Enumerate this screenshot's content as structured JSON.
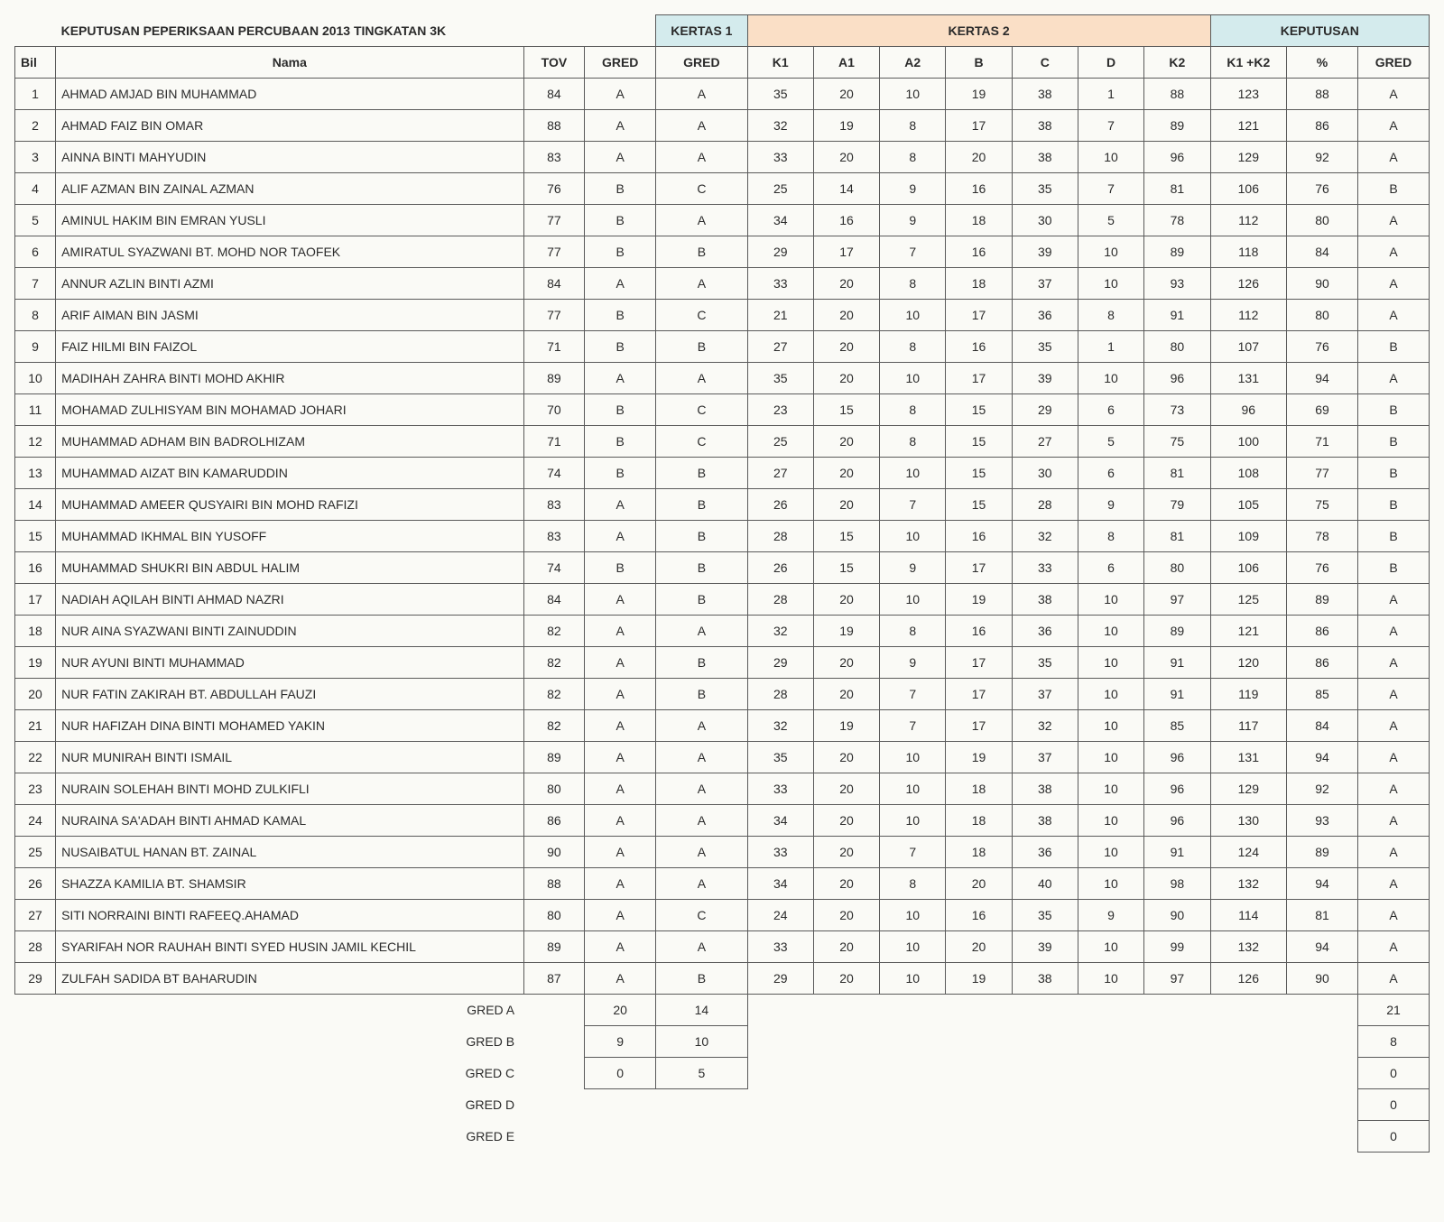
{
  "title": "KEPUTUSAN PEPERIKSAAN PERCUBAAN  2013 TINGKATAN 3K",
  "colors": {
    "header_blue": "#d4ebed",
    "header_peach": "#fadfc6",
    "border": "#5a5a5a",
    "background": "#fafaf6",
    "text": "#2b2b2b"
  },
  "fontsize": 14,
  "headers": {
    "kertas1": "KERTAS 1",
    "kertas2": "KERTAS 2",
    "keputusan": "KEPUTUSAN",
    "bil": "Bil",
    "nama": "Nama",
    "tov": "TOV",
    "gred": "GRED",
    "k1": "K1",
    "a1": "A1",
    "a2": "A2",
    "b": "B",
    "c": "C",
    "d": "D",
    "k2": "K2",
    "k1k2": "K1 +K2",
    "pct": "%"
  },
  "rows": [
    {
      "bil": 1,
      "name": "AHMAD AMJAD BIN MUHAMMAD",
      "tov": 84,
      "tg": "A",
      "k1g": "A",
      "k1": 35,
      "a1": 20,
      "a2": 10,
      "b": 19,
      "c": 38,
      "d": 1,
      "k2": 88,
      "sum": 123,
      "pct": 88,
      "fg": "A"
    },
    {
      "bil": 2,
      "name": "AHMAD FAIZ BIN OMAR",
      "tov": 88,
      "tg": "A",
      "k1g": "A",
      "k1": 32,
      "a1": 19,
      "a2": 8,
      "b": 17,
      "c": 38,
      "d": 7,
      "k2": 89,
      "sum": 121,
      "pct": 86,
      "fg": "A"
    },
    {
      "bil": 3,
      "name": "AINNA BINTI MAHYUDIN",
      "tov": 83,
      "tg": "A",
      "k1g": "A",
      "k1": 33,
      "a1": 20,
      "a2": 8,
      "b": 20,
      "c": 38,
      "d": 10,
      "k2": 96,
      "sum": 129,
      "pct": 92,
      "fg": "A"
    },
    {
      "bil": 4,
      "name": "ALIF AZMAN BIN ZAINAL AZMAN",
      "tov": 76,
      "tg": "B",
      "k1g": "C",
      "k1": 25,
      "a1": 14,
      "a2": 9,
      "b": 16,
      "c": 35,
      "d": 7,
      "k2": 81,
      "sum": 106,
      "pct": 76,
      "fg": "B"
    },
    {
      "bil": 5,
      "name": "AMINUL HAKIM BIN EMRAN YUSLI",
      "tov": 77,
      "tg": "B",
      "k1g": "A",
      "k1": 34,
      "a1": 16,
      "a2": 9,
      "b": 18,
      "c": 30,
      "d": 5,
      "k2": 78,
      "sum": 112,
      "pct": 80,
      "fg": "A"
    },
    {
      "bil": 6,
      "name": "AMIRATUL SYAZWANI BT. MOHD NOR TAOFEK",
      "tov": 77,
      "tg": "B",
      "k1g": "B",
      "k1": 29,
      "a1": 17,
      "a2": 7,
      "b": 16,
      "c": 39,
      "d": 10,
      "k2": 89,
      "sum": 118,
      "pct": 84,
      "fg": "A"
    },
    {
      "bil": 7,
      "name": "ANNUR AZLIN BINTI AZMI",
      "tov": 84,
      "tg": "A",
      "k1g": "A",
      "k1": 33,
      "a1": 20,
      "a2": 8,
      "b": 18,
      "c": 37,
      "d": 10,
      "k2": 93,
      "sum": 126,
      "pct": 90,
      "fg": "A"
    },
    {
      "bil": 8,
      "name": "ARIF AIMAN BIN JASMI",
      "tov": 77,
      "tg": "B",
      "k1g": "C",
      "k1": 21,
      "a1": 20,
      "a2": 10,
      "b": 17,
      "c": 36,
      "d": 8,
      "k2": 91,
      "sum": 112,
      "pct": 80,
      "fg": "A"
    },
    {
      "bil": 9,
      "name": "FAIZ HILMI BIN FAIZOL",
      "tov": 71,
      "tg": "B",
      "k1g": "B",
      "k1": 27,
      "a1": 20,
      "a2": 8,
      "b": 16,
      "c": 35,
      "d": 1,
      "k2": 80,
      "sum": 107,
      "pct": 76,
      "fg": "B"
    },
    {
      "bil": 10,
      "name": "MADIHAH ZAHRA BINTI MOHD AKHIR",
      "tov": 89,
      "tg": "A",
      "k1g": "A",
      "k1": 35,
      "a1": 20,
      "a2": 10,
      "b": 17,
      "c": 39,
      "d": 10,
      "k2": 96,
      "sum": 131,
      "pct": 94,
      "fg": "A"
    },
    {
      "bil": 11,
      "name": "MOHAMAD ZULHISYAM BIN MOHAMAD JOHARI",
      "tov": 70,
      "tg": "B",
      "k1g": "C",
      "k1": 23,
      "a1": 15,
      "a2": 8,
      "b": 15,
      "c": 29,
      "d": 6,
      "k2": 73,
      "sum": 96,
      "pct": 69,
      "fg": "B"
    },
    {
      "bil": 12,
      "name": "MUHAMMAD ADHAM BIN BADROLHIZAM",
      "tov": 71,
      "tg": "B",
      "k1g": "C",
      "k1": 25,
      "a1": 20,
      "a2": 8,
      "b": 15,
      "c": 27,
      "d": 5,
      "k2": 75,
      "sum": 100,
      "pct": 71,
      "fg": "B"
    },
    {
      "bil": 13,
      "name": "MUHAMMAD AIZAT BIN KAMARUDDIN",
      "tov": 74,
      "tg": "B",
      "k1g": "B",
      "k1": 27,
      "a1": 20,
      "a2": 10,
      "b": 15,
      "c": 30,
      "d": 6,
      "k2": 81,
      "sum": 108,
      "pct": 77,
      "fg": "B"
    },
    {
      "bil": 14,
      "name": "MUHAMMAD AMEER QUSYAIRI BIN MOHD RAFIZI",
      "tov": 83,
      "tg": "A",
      "k1g": "B",
      "k1": 26,
      "a1": 20,
      "a2": 7,
      "b": 15,
      "c": 28,
      "d": 9,
      "k2": 79,
      "sum": 105,
      "pct": 75,
      "fg": "B"
    },
    {
      "bil": 15,
      "name": "MUHAMMAD IKHMAL BIN YUSOFF",
      "tov": 83,
      "tg": "A",
      "k1g": "B",
      "k1": 28,
      "a1": 15,
      "a2": 10,
      "b": 16,
      "c": 32,
      "d": 8,
      "k2": 81,
      "sum": 109,
      "pct": 78,
      "fg": "B"
    },
    {
      "bil": 16,
      "name": "MUHAMMAD SHUKRI BIN ABDUL HALIM",
      "tov": 74,
      "tg": "B",
      "k1g": "B",
      "k1": 26,
      "a1": 15,
      "a2": 9,
      "b": 17,
      "c": 33,
      "d": 6,
      "k2": 80,
      "sum": 106,
      "pct": 76,
      "fg": "B"
    },
    {
      "bil": 17,
      "name": "NADIAH AQILAH BINTI AHMAD NAZRI",
      "tov": 84,
      "tg": "A",
      "k1g": "B",
      "k1": 28,
      "a1": 20,
      "a2": 10,
      "b": 19,
      "c": 38,
      "d": 10,
      "k2": 97,
      "sum": 125,
      "pct": 89,
      "fg": "A"
    },
    {
      "bil": 18,
      "name": "NUR AINA SYAZWANI BINTI  ZAINUDDIN",
      "tov": 82,
      "tg": "A",
      "k1g": "A",
      "k1": 32,
      "a1": 19,
      "a2": 8,
      "b": 16,
      "c": 36,
      "d": 10,
      "k2": 89,
      "sum": 121,
      "pct": 86,
      "fg": "A"
    },
    {
      "bil": 19,
      "name": "NUR AYUNI BINTI MUHAMMAD",
      "tov": 82,
      "tg": "A",
      "k1g": "B",
      "k1": 29,
      "a1": 20,
      "a2": 9,
      "b": 17,
      "c": 35,
      "d": 10,
      "k2": 91,
      "sum": 120,
      "pct": 86,
      "fg": "A"
    },
    {
      "bil": 20,
      "name": "NUR FATIN ZAKIRAH BT. ABDULLAH FAUZI",
      "tov": 82,
      "tg": "A",
      "k1g": "B",
      "k1": 28,
      "a1": 20,
      "a2": 7,
      "b": 17,
      "c": 37,
      "d": 10,
      "k2": 91,
      "sum": 119,
      "pct": 85,
      "fg": "A"
    },
    {
      "bil": 21,
      "name": "NUR HAFIZAH DINA BINTI MOHAMED YAKIN",
      "tov": 82,
      "tg": "A",
      "k1g": "A",
      "k1": 32,
      "a1": 19,
      "a2": 7,
      "b": 17,
      "c": 32,
      "d": 10,
      "k2": 85,
      "sum": 117,
      "pct": 84,
      "fg": "A"
    },
    {
      "bil": 22,
      "name": "NUR MUNIRAH BINTI ISMAIL",
      "tov": 89,
      "tg": "A",
      "k1g": "A",
      "k1": 35,
      "a1": 20,
      "a2": 10,
      "b": 19,
      "c": 37,
      "d": 10,
      "k2": 96,
      "sum": 131,
      "pct": 94,
      "fg": "A"
    },
    {
      "bil": 23,
      "name": "NURAIN SOLEHAH BINTI MOHD ZULKIFLI",
      "tov": 80,
      "tg": "A",
      "k1g": "A",
      "k1": 33,
      "a1": 20,
      "a2": 10,
      "b": 18,
      "c": 38,
      "d": 10,
      "k2": 96,
      "sum": 129,
      "pct": 92,
      "fg": "A"
    },
    {
      "bil": 24,
      "name": "NURAINA SA'ADAH BINTI AHMAD KAMAL",
      "tov": 86,
      "tg": "A",
      "k1g": "A",
      "k1": 34,
      "a1": 20,
      "a2": 10,
      "b": 18,
      "c": 38,
      "d": 10,
      "k2": 96,
      "sum": 130,
      "pct": 93,
      "fg": "A"
    },
    {
      "bil": 25,
      "name": "NUSAIBATUL HANAN BT. ZAINAL",
      "tov": 90,
      "tg": "A",
      "k1g": "A",
      "k1": 33,
      "a1": 20,
      "a2": 7,
      "b": 18,
      "c": 36,
      "d": 10,
      "k2": 91,
      "sum": 124,
      "pct": 89,
      "fg": "A"
    },
    {
      "bil": 26,
      "name": "SHAZZA KAMILIA BT. SHAMSIR",
      "tov": 88,
      "tg": "A",
      "k1g": "A",
      "k1": 34,
      "a1": 20,
      "a2": 8,
      "b": 20,
      "c": 40,
      "d": 10,
      "k2": 98,
      "sum": 132,
      "pct": 94,
      "fg": "A"
    },
    {
      "bil": 27,
      "name": "SITI NORRAINI BINTI RAFEEQ.AHAMAD",
      "tov": 80,
      "tg": "A",
      "k1g": "C",
      "k1": 24,
      "a1": 20,
      "a2": 10,
      "b": 16,
      "c": 35,
      "d": 9,
      "k2": 90,
      "sum": 114,
      "pct": 81,
      "fg": "A"
    },
    {
      "bil": 28,
      "name": "SYARIFAH NOR RAUHAH BINTI SYED HUSIN JAMIL KECHIL",
      "tov": 89,
      "tg": "A",
      "k1g": "A",
      "k1": 33,
      "a1": 20,
      "a2": 10,
      "b": 20,
      "c": 39,
      "d": 10,
      "k2": 99,
      "sum": 132,
      "pct": 94,
      "fg": "A"
    },
    {
      "bil": 29,
      "name": "ZULFAH SADIDA BT BAHARUDIN",
      "tov": 87,
      "tg": "A",
      "k1g": "B",
      "k1": 29,
      "a1": 20,
      "a2": 10,
      "b": 19,
      "c": 38,
      "d": 10,
      "k2": 97,
      "sum": 126,
      "pct": 90,
      "fg": "A"
    }
  ],
  "summary": {
    "labels": {
      "a": "GRED A",
      "b": "GRED B",
      "c": "GRED C",
      "d": "GRED D",
      "e": "GRED E"
    },
    "gred_count": {
      "a": 20,
      "b": 9,
      "c": 0,
      "d": "",
      "e": ""
    },
    "k1g_count": {
      "a": 14,
      "b": 10,
      "c": 5,
      "d": "",
      "e": ""
    },
    "fg_count": {
      "a": 21,
      "b": 8,
      "c": 0,
      "d": 0,
      "e": 0
    }
  }
}
